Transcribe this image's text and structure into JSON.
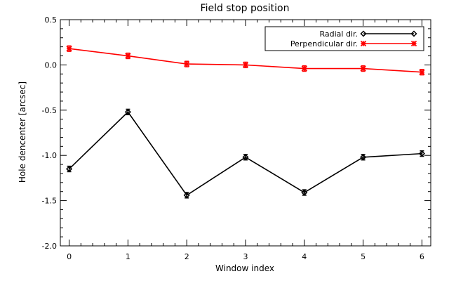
{
  "chart_data": {
    "type": "line",
    "title": "Field stop position",
    "xlabel": "Window index",
    "ylabel": "Hole dencenter [arcsec]",
    "xlim": [
      -0.15,
      6.15
    ],
    "ylim": [
      -2.0,
      0.5
    ],
    "xticks": [
      0,
      1,
      2,
      3,
      4,
      5,
      6
    ],
    "yticks": [
      0.5,
      0.0,
      -0.5,
      -1.0,
      -1.5,
      -2.0
    ],
    "ytick_labels": [
      "0.5",
      "0.0",
      "-0.5",
      "-1.0",
      "-1.5",
      "-2.0"
    ],
    "grid": false,
    "legend": "top-right",
    "x": [
      0,
      1,
      2,
      3,
      4,
      5,
      6
    ],
    "series": [
      {
        "name": "Radial dir.",
        "values": [
          -1.15,
          -0.52,
          -1.44,
          -1.02,
          -1.41,
          -1.02,
          -0.98
        ],
        "error": [
          0.03,
          0.03,
          0.03,
          0.03,
          0.03,
          0.03,
          0.03
        ],
        "color": "#000000",
        "marker": "diamond"
      },
      {
        "name": "Perpendicular dir.",
        "values": [
          0.18,
          0.1,
          0.01,
          0.0,
          -0.04,
          -0.04,
          -0.08
        ],
        "error": [
          0.03,
          0.03,
          0.03,
          0.03,
          0.03,
          0.03,
          0.03
        ],
        "color": "#ff0000",
        "marker": "asterisk"
      }
    ]
  }
}
